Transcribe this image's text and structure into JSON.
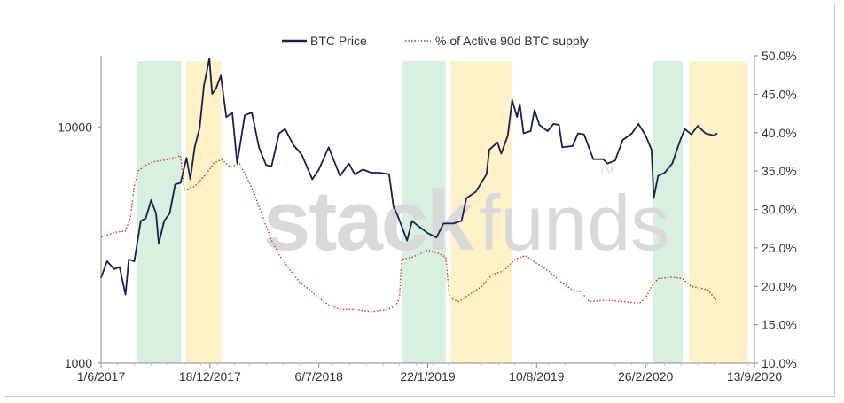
{
  "watermark": {
    "bold": "stack",
    "light": "funds",
    "mark": "TM"
  },
  "chart_data": {
    "type": "line",
    "title": "",
    "xlabel": "",
    "ylabel": "",
    "legend": {
      "position": "top-center",
      "entries": [
        "BTC Price",
        "% of Active 90d BTC supply"
      ]
    },
    "colors": {
      "price": "#1b1f4f",
      "active": "#c0392b",
      "green": "#d7f0df",
      "yellow": "#fff2c9",
      "axis": "#8c8c8c"
    },
    "x_axis": {
      "min": "2017-06-01",
      "max": "2020-09-13",
      "ticks": [
        {
          "date": "2017-06-01",
          "label": "1/6/2017"
        },
        {
          "date": "2017-12-18",
          "label": "18/12/2017"
        },
        {
          "date": "2018-07-06",
          "label": "6/7/2018"
        },
        {
          "date": "2019-01-22",
          "label": "22/1/2019"
        },
        {
          "date": "2019-08-10",
          "label": "10/8/2019"
        },
        {
          "date": "2020-02-26",
          "label": "26/2/2020"
        },
        {
          "date": "2020-09-13",
          "label": "13/9/2020"
        }
      ]
    },
    "y_left": {
      "scale": "log",
      "min": 1000,
      "max": 20000,
      "ticks": [
        {
          "value": 1000,
          "label": "1000"
        },
        {
          "value": 10000,
          "label": "10000"
        }
      ]
    },
    "y_right": {
      "min": 0.1,
      "max": 0.5,
      "ticks": [
        {
          "value": 0.1,
          "label": "10.0%"
        },
        {
          "value": 0.15,
          "label": "15.0%"
        },
        {
          "value": 0.2,
          "label": "20.0%"
        },
        {
          "value": 0.25,
          "label": "25.0%"
        },
        {
          "value": 0.3,
          "label": "30.0%"
        },
        {
          "value": 0.35,
          "label": "35.0%"
        },
        {
          "value": 0.4,
          "label": "40.0%"
        },
        {
          "value": 0.45,
          "label": "45.0%"
        },
        {
          "value": 0.5,
          "label": "50.0%"
        }
      ]
    },
    "bands": [
      {
        "start": "2017-08-06",
        "end": "2017-10-26",
        "color": "green"
      },
      {
        "start": "2017-11-04",
        "end": "2018-01-08",
        "color": "yellow"
      },
      {
        "start": "2018-12-05",
        "end": "2019-02-24",
        "color": "green"
      },
      {
        "start": "2019-03-05",
        "end": "2019-06-27",
        "color": "yellow"
      },
      {
        "start": "2020-03-10",
        "end": "2020-05-04",
        "color": "green"
      },
      {
        "start": "2020-05-16",
        "end": "2020-09-01",
        "color": "yellow"
      }
    ],
    "series": [
      {
        "name": "BTC Price",
        "axis": "left",
        "style": "solid",
        "points": [
          [
            "2017-06-01",
            2300
          ],
          [
            "2017-06-12",
            2700
          ],
          [
            "2017-06-25",
            2500
          ],
          [
            "2017-07-05",
            2550
          ],
          [
            "2017-07-16",
            1950
          ],
          [
            "2017-07-22",
            2750
          ],
          [
            "2017-08-01",
            2700
          ],
          [
            "2017-08-13",
            4000
          ],
          [
            "2017-08-22",
            4100
          ],
          [
            "2017-09-01",
            4900
          ],
          [
            "2017-09-10",
            4300
          ],
          [
            "2017-09-15",
            3200
          ],
          [
            "2017-09-25",
            4000
          ],
          [
            "2017-10-05",
            4300
          ],
          [
            "2017-10-15",
            5700
          ],
          [
            "2017-10-25",
            5800
          ],
          [
            "2017-11-05",
            7400
          ],
          [
            "2017-11-12",
            6000
          ],
          [
            "2017-11-20",
            8200
          ],
          [
            "2017-11-29",
            9900
          ],
          [
            "2017-12-07",
            15000
          ],
          [
            "2017-12-17",
            19500
          ],
          [
            "2017-12-22",
            13800
          ],
          [
            "2017-12-29",
            14500
          ],
          [
            "2018-01-07",
            16500
          ],
          [
            "2018-01-17",
            11000
          ],
          [
            "2018-01-28",
            11500
          ],
          [
            "2018-02-06",
            7000
          ],
          [
            "2018-02-20",
            11200
          ],
          [
            "2018-03-05",
            11500
          ],
          [
            "2018-03-18",
            8200
          ],
          [
            "2018-03-31",
            6900
          ],
          [
            "2018-04-10",
            6800
          ],
          [
            "2018-04-24",
            9400
          ],
          [
            "2018-05-05",
            9800
          ],
          [
            "2018-05-20",
            8400
          ],
          [
            "2018-06-05",
            7600
          ],
          [
            "2018-06-24",
            6000
          ],
          [
            "2018-07-06",
            6600
          ],
          [
            "2018-07-24",
            8200
          ],
          [
            "2018-08-14",
            6200
          ],
          [
            "2018-08-30",
            7000
          ],
          [
            "2018-09-10",
            6300
          ],
          [
            "2018-09-25",
            6600
          ],
          [
            "2018-10-10",
            6400
          ],
          [
            "2018-10-25",
            6400
          ],
          [
            "2018-11-12",
            6300
          ],
          [
            "2018-11-20",
            4600
          ],
          [
            "2018-11-28",
            4200
          ],
          [
            "2018-12-15",
            3300
          ],
          [
            "2018-12-24",
            4000
          ],
          [
            "2019-01-05",
            3800
          ],
          [
            "2019-01-22",
            3550
          ],
          [
            "2019-02-07",
            3400
          ],
          [
            "2019-02-20",
            3900
          ],
          [
            "2019-03-10",
            3900
          ],
          [
            "2019-03-25",
            4000
          ],
          [
            "2019-04-03",
            5000
          ],
          [
            "2019-04-20",
            5300
          ],
          [
            "2019-05-10",
            6300
          ],
          [
            "2019-05-15",
            8000
          ],
          [
            "2019-05-30",
            8600
          ],
          [
            "2019-06-06",
            7700
          ],
          [
            "2019-06-18",
            9200
          ],
          [
            "2019-06-26",
            13000
          ],
          [
            "2019-07-05",
            11000
          ],
          [
            "2019-07-10",
            12500
          ],
          [
            "2019-07-17",
            9400
          ],
          [
            "2019-07-30",
            9600
          ],
          [
            "2019-08-06",
            11800
          ],
          [
            "2019-08-15",
            10200
          ],
          [
            "2019-08-30",
            9600
          ],
          [
            "2019-09-10",
            10300
          ],
          [
            "2019-09-20",
            10200
          ],
          [
            "2019-09-26",
            8200
          ],
          [
            "2019-10-15",
            8300
          ],
          [
            "2019-10-25",
            9400
          ],
          [
            "2019-11-05",
            9300
          ],
          [
            "2019-11-22",
            7300
          ],
          [
            "2019-12-10",
            7300
          ],
          [
            "2019-12-18",
            7000
          ],
          [
            "2020-01-01",
            7200
          ],
          [
            "2020-01-15",
            8800
          ],
          [
            "2020-02-01",
            9400
          ],
          [
            "2020-02-13",
            10300
          ],
          [
            "2020-02-26",
            9200
          ],
          [
            "2020-03-08",
            8000
          ],
          [
            "2020-03-12",
            5000
          ],
          [
            "2020-03-20",
            6200
          ],
          [
            "2020-04-01",
            6400
          ],
          [
            "2020-04-15",
            7000
          ],
          [
            "2020-04-29",
            8700
          ],
          [
            "2020-05-08",
            9800
          ],
          [
            "2020-05-20",
            9300
          ],
          [
            "2020-06-01",
            10100
          ],
          [
            "2020-06-15",
            9400
          ],
          [
            "2020-06-30",
            9200
          ],
          [
            "2020-07-07",
            9400
          ]
        ]
      },
      {
        "name": "% of Active 90d BTC supply",
        "axis": "right",
        "style": "dotted",
        "points": [
          [
            "2017-06-01",
            0.264
          ],
          [
            "2017-06-25",
            0.27
          ],
          [
            "2017-07-16",
            0.272
          ],
          [
            "2017-07-25",
            0.29
          ],
          [
            "2017-08-01",
            0.33
          ],
          [
            "2017-08-08",
            0.35
          ],
          [
            "2017-08-20",
            0.357
          ],
          [
            "2017-09-05",
            0.362
          ],
          [
            "2017-10-01",
            0.365
          ],
          [
            "2017-10-25",
            0.37
          ],
          [
            "2017-11-01",
            0.325
          ],
          [
            "2017-11-20",
            0.33
          ],
          [
            "2017-12-10",
            0.345
          ],
          [
            "2017-12-25",
            0.36
          ],
          [
            "2018-01-08",
            0.365
          ],
          [
            "2018-01-25",
            0.355
          ],
          [
            "2018-02-10",
            0.36
          ],
          [
            "2018-02-25",
            0.34
          ],
          [
            "2018-03-10",
            0.32
          ],
          [
            "2018-03-25",
            0.29
          ],
          [
            "2018-04-10",
            0.26
          ],
          [
            "2018-04-25",
            0.24
          ],
          [
            "2018-05-15",
            0.22
          ],
          [
            "2018-06-01",
            0.205
          ],
          [
            "2018-06-20",
            0.195
          ],
          [
            "2018-07-06",
            0.185
          ],
          [
            "2018-07-25",
            0.175
          ],
          [
            "2018-08-15",
            0.17
          ],
          [
            "2018-09-10",
            0.17
          ],
          [
            "2018-10-10",
            0.167
          ],
          [
            "2018-11-10",
            0.17
          ],
          [
            "2018-11-25",
            0.175
          ],
          [
            "2018-12-01",
            0.185
          ],
          [
            "2018-12-05",
            0.235
          ],
          [
            "2018-12-25",
            0.238
          ],
          [
            "2019-01-10",
            0.243
          ],
          [
            "2019-01-22",
            0.247
          ],
          [
            "2019-02-10",
            0.243
          ],
          [
            "2019-02-24",
            0.238
          ],
          [
            "2019-03-03",
            0.185
          ],
          [
            "2019-03-20",
            0.18
          ],
          [
            "2019-04-10",
            0.19
          ],
          [
            "2019-05-01",
            0.2
          ],
          [
            "2019-05-20",
            0.215
          ],
          [
            "2019-06-10",
            0.22
          ],
          [
            "2019-07-01",
            0.235
          ],
          [
            "2019-07-20",
            0.24
          ],
          [
            "2019-08-10",
            0.23
          ],
          [
            "2019-09-01",
            0.22
          ],
          [
            "2019-09-25",
            0.205
          ],
          [
            "2019-10-15",
            0.195
          ],
          [
            "2019-10-30",
            0.193
          ],
          [
            "2019-11-15",
            0.18
          ],
          [
            "2019-12-15",
            0.182
          ],
          [
            "2020-01-15",
            0.18
          ],
          [
            "2020-02-15",
            0.178
          ],
          [
            "2020-02-26",
            0.185
          ],
          [
            "2020-03-08",
            0.2
          ],
          [
            "2020-03-20",
            0.21
          ],
          [
            "2020-04-15",
            0.212
          ],
          [
            "2020-05-04",
            0.21
          ],
          [
            "2020-05-20",
            0.2
          ],
          [
            "2020-06-05",
            0.198
          ],
          [
            "2020-06-20",
            0.195
          ],
          [
            "2020-07-07",
            0.18
          ]
        ]
      }
    ]
  }
}
